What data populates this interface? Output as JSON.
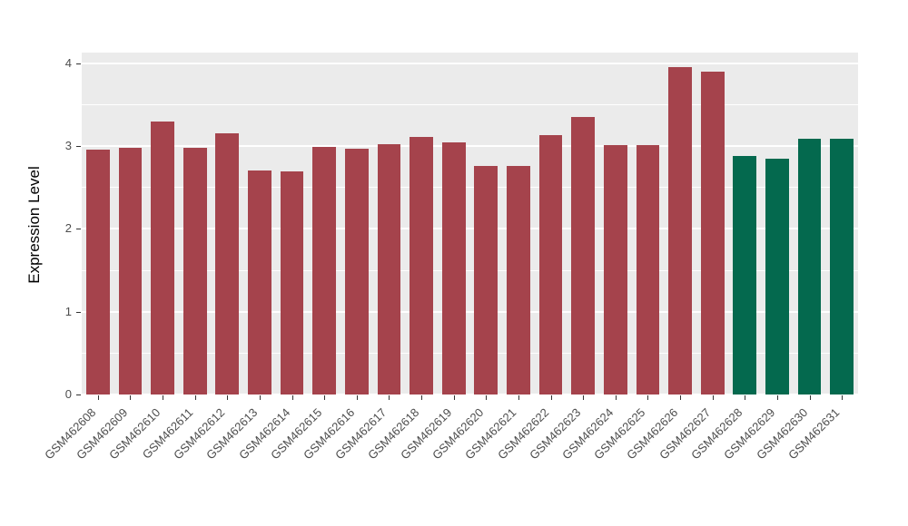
{
  "chart_data": {
    "type": "bar",
    "title": "",
    "xlabel": "",
    "ylabel": "Expression Level",
    "ylim": [
      0,
      4
    ],
    "yticks": [
      0,
      1,
      2,
      3,
      4
    ],
    "grid": "on",
    "legend_position": "none",
    "panel_background": "#EBEBEB",
    "gridline_color": "#ffffff",
    "categories": [
      "GSM462608",
      "GSM462609",
      "GSM462610",
      "GSM462611",
      "GSM462612",
      "GSM462613",
      "GSM462614",
      "GSM462615",
      "GSM462616",
      "GSM462617",
      "GSM462618",
      "GSM462619",
      "GSM462620",
      "GSM462621",
      "GSM462622",
      "GSM462623",
      "GSM462624",
      "GSM462625",
      "GSM462626",
      "GSM462627",
      "GSM462628",
      "GSM462629",
      "GSM462630",
      "GSM462631"
    ],
    "values": [
      2.96,
      2.98,
      3.3,
      2.98,
      3.15,
      2.71,
      2.7,
      2.99,
      2.97,
      3.02,
      3.11,
      3.05,
      2.76,
      2.76,
      3.13,
      3.35,
      3.01,
      3.01,
      3.95,
      3.9,
      2.88,
      2.85,
      3.09,
      3.09
    ],
    "bar_groups": [
      "A",
      "A",
      "A",
      "A",
      "A",
      "A",
      "A",
      "A",
      "A",
      "A",
      "A",
      "A",
      "A",
      "A",
      "A",
      "A",
      "A",
      "A",
      "A",
      "A",
      "B",
      "B",
      "B",
      "B"
    ],
    "group_colors": {
      "A": "#A5434C",
      "B": "#04694E"
    }
  }
}
